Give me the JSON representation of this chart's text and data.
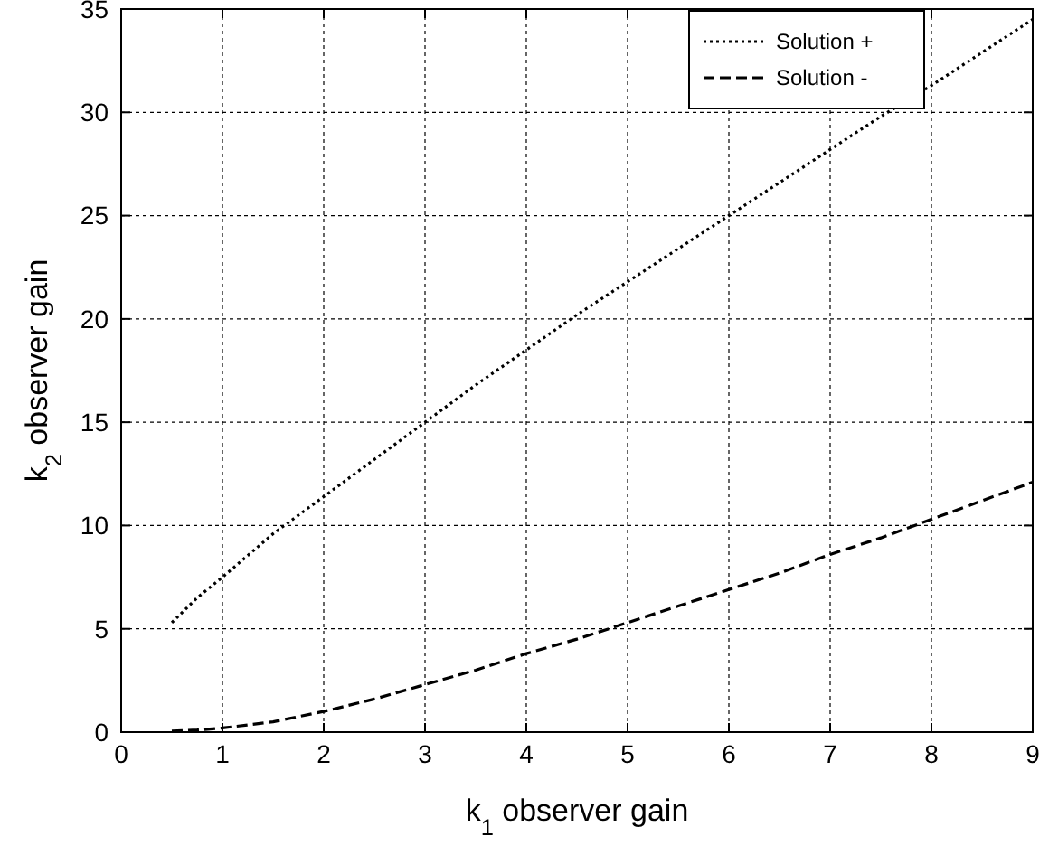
{
  "chart_data": {
    "type": "line",
    "xlabel": "k$_{1}$ observer gain",
    "ylabel": "k$_{2}$ observer gain",
    "xlim": [
      0,
      9
    ],
    "xticks": [
      0,
      1,
      2,
      3,
      4,
      5,
      6,
      7,
      8,
      9
    ],
    "ylim": [
      0,
      35
    ],
    "yticks": [
      0,
      5,
      10,
      15,
      20,
      25,
      30,
      35
    ],
    "grid": true,
    "legend": "top right",
    "series": [
      {
        "name": "Solution +",
        "color": "#000000",
        "line_style": "dotted",
        "x": [
          0.5,
          0.75,
          1,
          1.5,
          2,
          2.5,
          3,
          3.5,
          4,
          4.5,
          5,
          5.5,
          6,
          6.5,
          7,
          7.5,
          8,
          8.5,
          9
        ],
        "values": [
          5.3,
          6.5,
          7.5,
          9.6,
          11.4,
          13.2,
          15,
          16.8,
          18.5,
          20.2,
          21.8,
          23.4,
          25,
          26.6,
          28.2,
          29.8,
          31.3,
          32.9,
          34.5
        ]
      },
      {
        "name": "Solution -",
        "color": "#000000",
        "line_style": "dashed",
        "x": [
          0.5,
          0.75,
          1,
          1.25,
          1.5,
          2,
          2.5,
          3,
          3.5,
          4,
          4.5,
          5,
          5.5,
          6,
          6.5,
          7,
          7.5,
          8,
          8.5,
          9
        ],
        "values": [
          0.05,
          0.1,
          0.2,
          0.35,
          0.5,
          1,
          1.6,
          2.3,
          3,
          3.8,
          4.5,
          5.3,
          6.1,
          6.9,
          7.7,
          8.6,
          9.4,
          10.3,
          11.2,
          12.1
        ]
      }
    ]
  }
}
